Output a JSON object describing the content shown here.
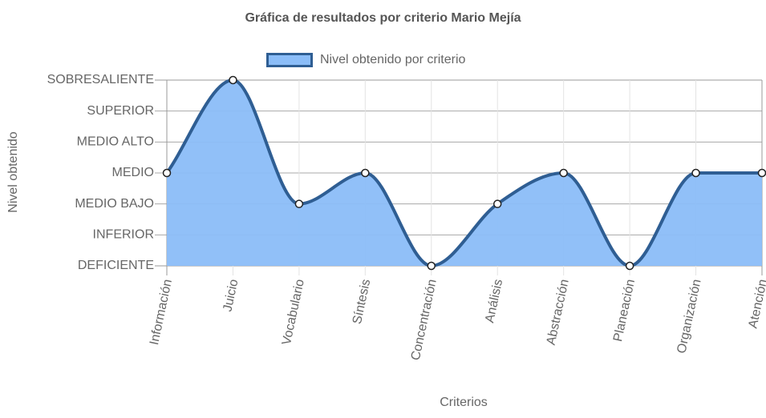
{
  "chart_data": {
    "type": "area",
    "title": "Gráfica de resultados por criterio Mario Mejía",
    "xlabel": "Criterios",
    "ylabel": "Nivel obtenido",
    "categories": [
      "Información",
      "Juicio",
      "Vocabulario",
      "Síntesis",
      "Concentración",
      "Análisis",
      "Abstracción",
      "Planeación",
      "Organización",
      "Atención"
    ],
    "y_levels": [
      "DEFICIENTE",
      "INFERIOR",
      "MEDIO BAJO",
      "MEDIO",
      "MEDIO ALTO",
      "SUPERIOR",
      "SOBRESALIENTE"
    ],
    "ylim": [
      0,
      6
    ],
    "grid": true,
    "legend_position": "top-center",
    "series": [
      {
        "name": "Nivel obtenido por criterio",
        "values": [
          3,
          6,
          2,
          3,
          0,
          2,
          3,
          0,
          3,
          3
        ],
        "fill_color": "#8bbdf8",
        "line_color": "#2f5e93"
      }
    ]
  }
}
